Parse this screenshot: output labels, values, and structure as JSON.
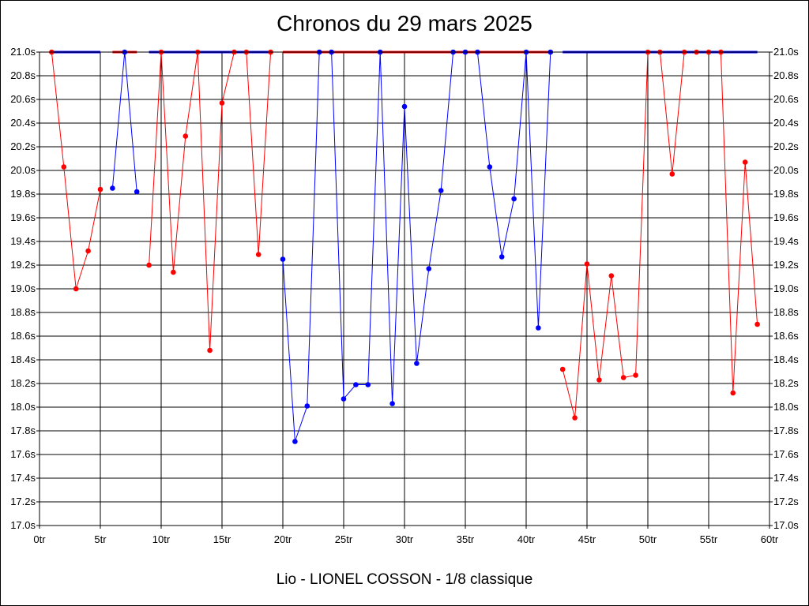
{
  "chart_data": {
    "type": "line",
    "title": "Chronos du 29 mars 2025",
    "subtitle": "Lio - LIONEL COSSON - 1/8 classique",
    "xlabel": "",
    "ylabel": "",
    "xlim": [
      0,
      60
    ],
    "ylim": [
      17.0,
      21.0
    ],
    "x_ticks": [
      0,
      5,
      10,
      15,
      20,
      25,
      30,
      35,
      40,
      45,
      50,
      55,
      60
    ],
    "x_tick_labels": [
      "0tr",
      "5tr",
      "10tr",
      "15tr",
      "20tr",
      "25tr",
      "30tr",
      "35tr",
      "40tr",
      "45tr",
      "50tr",
      "55tr",
      "60tr"
    ],
    "y_ticks": [
      17.0,
      17.2,
      17.4,
      17.6,
      17.8,
      18.0,
      18.2,
      18.4,
      18.6,
      18.8,
      19.0,
      19.2,
      19.4,
      19.6,
      19.8,
      20.0,
      20.2,
      20.4,
      20.6,
      20.8,
      21.0
    ],
    "y_tick_labels": [
      "17.0s",
      "17.2s",
      "17.4s",
      "17.6s",
      "17.8s",
      "18.0s",
      "18.2s",
      "18.4s",
      "18.6s",
      "18.8s",
      "19.0s",
      "19.2s",
      "19.4s",
      "19.6s",
      "19.8s",
      "20.0s",
      "20.2s",
      "20.4s",
      "20.6s",
      "20.8s",
      "21.0s"
    ],
    "grid": true,
    "clip_value": 21.0,
    "series": [
      {
        "color": "#ff0000",
        "x": [
          1,
          2,
          3,
          4,
          5
        ],
        "values": [
          21.0,
          20.03,
          19.0,
          19.32,
          19.84
        ]
      },
      {
        "color": "#0000ff",
        "x": [
          6,
          7,
          8
        ],
        "values": [
          19.85,
          21.0,
          19.82
        ]
      },
      {
        "color": "#ff0000",
        "x": [
          9,
          10,
          11,
          12,
          13,
          14,
          15,
          16,
          17,
          18,
          19
        ],
        "values": [
          19.2,
          21.0,
          19.14,
          20.29,
          21.0,
          18.48,
          20.57,
          21.0,
          21.0,
          19.29,
          21.0
        ]
      },
      {
        "color": "#0000ff",
        "x": [
          20,
          21,
          22,
          23,
          24,
          25,
          26,
          27,
          28,
          29,
          30,
          31,
          32,
          33,
          34,
          35,
          36,
          37,
          38,
          39,
          40,
          41,
          42
        ],
        "values": [
          19.25,
          17.71,
          18.01,
          21.0,
          21.0,
          18.07,
          18.19,
          18.19,
          21.0,
          18.03,
          20.54,
          18.37,
          19.17,
          19.83,
          21.0,
          21.0,
          21.0,
          20.03,
          19.27,
          19.76,
          21.0,
          18.67,
          21.0
        ]
      },
      {
        "color": "#ff0000",
        "x": [
          43,
          44,
          45,
          46,
          47,
          48,
          49,
          50,
          51,
          52,
          53,
          54,
          55,
          56,
          57,
          58,
          59
        ],
        "values": [
          18.32,
          17.91,
          19.21,
          18.23,
          19.11,
          18.25,
          18.27,
          21.0,
          21.0,
          19.97,
          21.0,
          21.0,
          21.0,
          21.0,
          18.12,
          20.07,
          18.7
        ]
      }
    ],
    "top_segments": [
      {
        "color": "#0000ff",
        "from": 1,
        "to": 5
      },
      {
        "color": "#ff0000",
        "from": 6,
        "to": 8
      },
      {
        "color": "#0000ff",
        "from": 9,
        "to": 19
      },
      {
        "color": "#ff0000",
        "from": 20,
        "to": 42
      },
      {
        "color": "#0000ff",
        "from": 43,
        "to": 59
      }
    ]
  }
}
